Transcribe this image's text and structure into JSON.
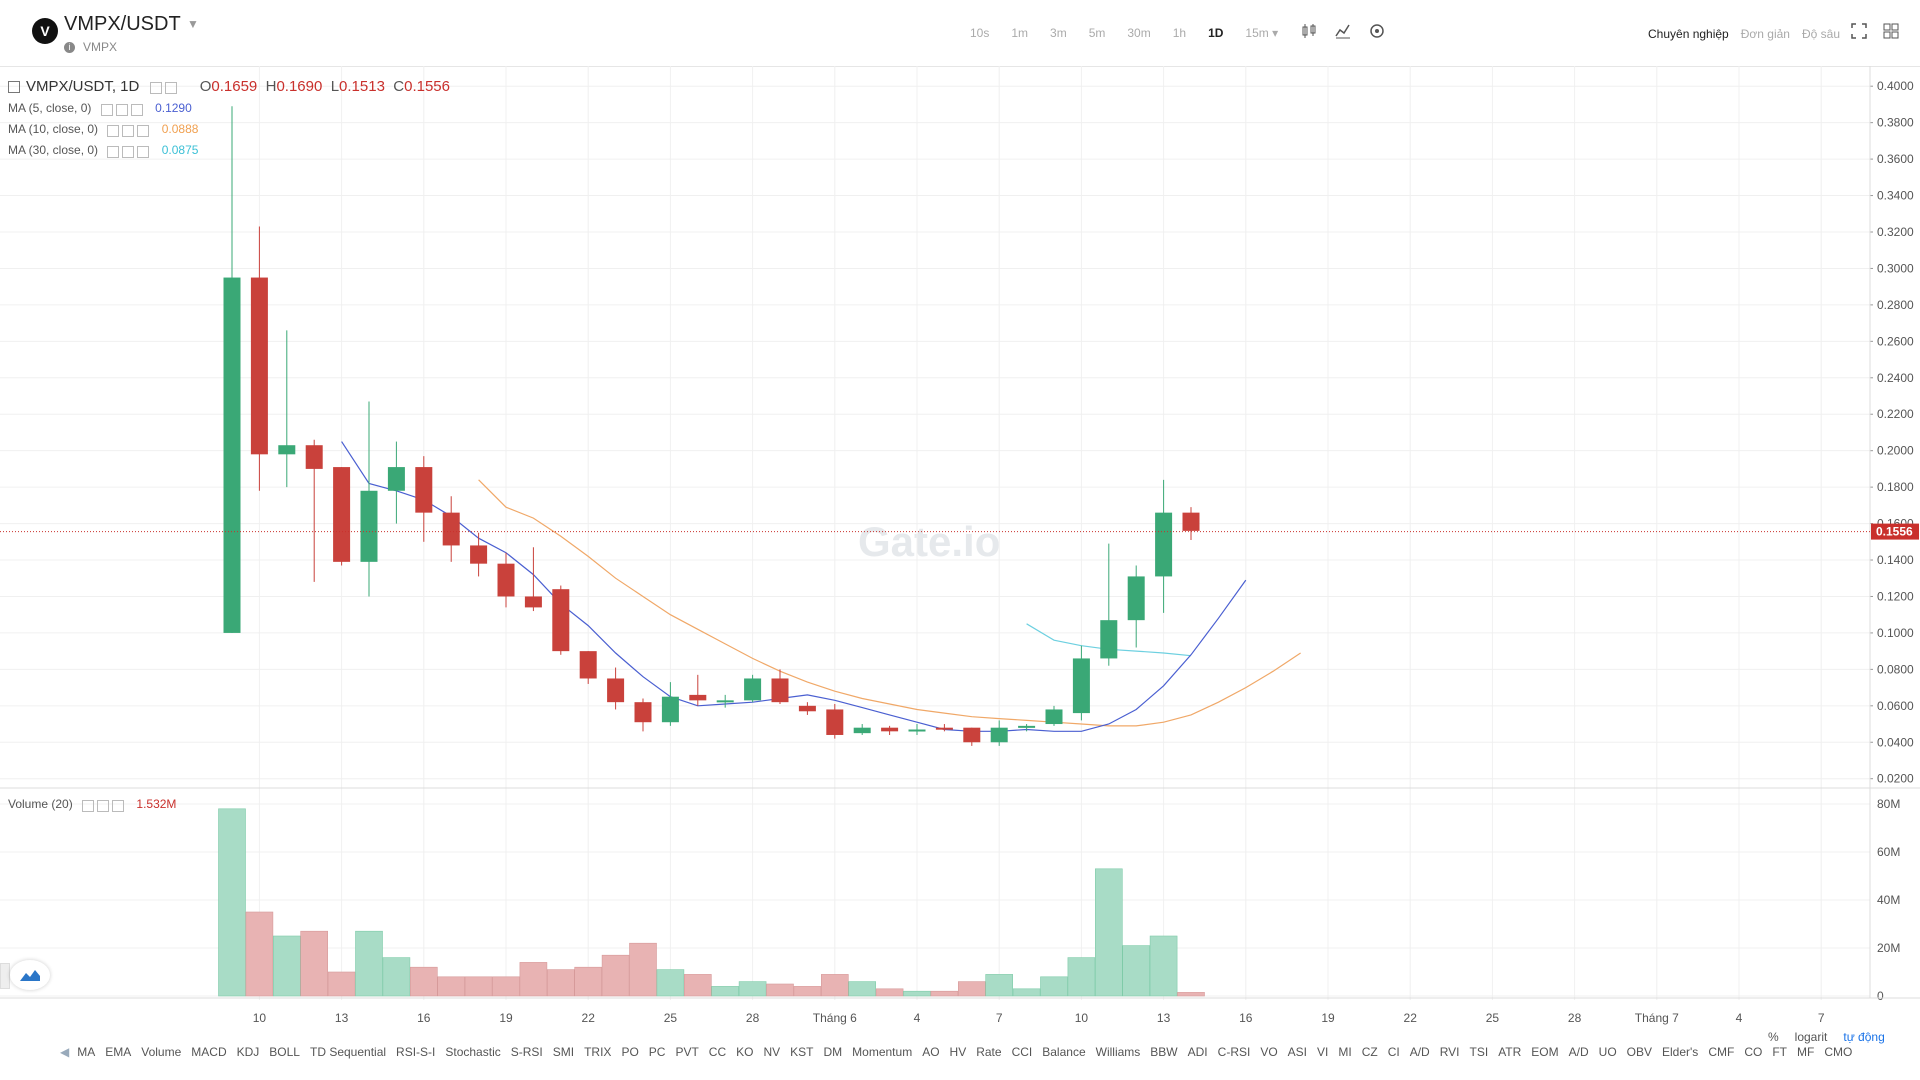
{
  "header": {
    "pair": "VMPX/USDT",
    "sub": "VMPX",
    "intervals": [
      "10s",
      "1m",
      "3m",
      "5m",
      "30m",
      "1h",
      "1D",
      "15m ▾"
    ],
    "active_interval": "1D",
    "modes": [
      "Chuyên nghiệp",
      "Đơn giản",
      "Độ sâu"
    ],
    "active_mode": "Chuyên nghiệp"
  },
  "legend": {
    "title": "VMPX/USDT, 1D",
    "o_label": "O",
    "o": "0.1659",
    "h_label": "H",
    "h": "0.1690",
    "l_label": "L",
    "l": "0.1513",
    "c_label": "C",
    "c": "0.1556",
    "ma5_label": "MA (5, close, 0)",
    "ma5_value": "0.1290",
    "ma10_label": "MA (10, close, 0)",
    "ma10_value": "0.0888",
    "ma30_label": "MA (30, close, 0)",
    "ma30_value": "0.0875",
    "volume_label": "Volume (20)",
    "volume_value": "1.532M"
  },
  "colors": {
    "up": "#3aa876",
    "down": "#c9413b",
    "up_vol": "#a8dcc6",
    "down_vol": "#e8b3b3",
    "ma5": "#4a5fd1",
    "ma10": "#f0a868",
    "ma30": "#6dd0e0",
    "last_price": "#c9302c"
  },
  "watermark": "Gate.io",
  "chart_data": {
    "type": "candlestick",
    "title": "VMPX/USDT, 1D",
    "price_axis_ticks": [
      "0.0200",
      "0.0400",
      "0.0600",
      "0.0800",
      "0.1000",
      "0.1200",
      "0.1400",
      "0.1600",
      "0.1800",
      "0.2000",
      "0.2200",
      "0.2400",
      "0.2600",
      "0.2800",
      "0.3000",
      "0.3200",
      "0.3400",
      "0.3600",
      "0.3800",
      "0.4000"
    ],
    "ylim": [
      0.016,
      0.4045
    ],
    "last_price": "0.1556",
    "volume_axis_ticks": [
      "0",
      "20M",
      "40M",
      "60M",
      "80M"
    ],
    "volume_ylim": [
      0,
      80
    ],
    "x_ticks": [
      "10",
      "13",
      "16",
      "19",
      "22",
      "25",
      "28",
      "Tháng 6",
      "4",
      "7",
      "10",
      "13",
      "16",
      "19",
      "22",
      "25",
      "28",
      "Tháng 7",
      "4",
      "7"
    ],
    "x_tick_index": [
      1,
      4,
      7,
      10,
      13,
      16,
      19,
      22,
      25,
      28,
      31,
      34,
      37,
      40,
      43,
      46,
      49,
      52,
      55,
      58
    ],
    "candles": [
      {
        "o": 0.1,
        "h": 0.389,
        "l": 0.1,
        "c": 0.295,
        "v": 78
      },
      {
        "o": 0.295,
        "h": 0.323,
        "l": 0.178,
        "c": 0.198,
        "v": 35
      },
      {
        "o": 0.198,
        "h": 0.266,
        "l": 0.18,
        "c": 0.203,
        "v": 25
      },
      {
        "o": 0.203,
        "h": 0.206,
        "l": 0.128,
        "c": 0.19,
        "v": 27
      },
      {
        "o": 0.191,
        "h": 0.191,
        "l": 0.137,
        "c": 0.139,
        "v": 10
      },
      {
        "o": 0.139,
        "h": 0.227,
        "l": 0.12,
        "c": 0.178,
        "v": 27
      },
      {
        "o": 0.178,
        "h": 0.205,
        "l": 0.16,
        "c": 0.191,
        "v": 16
      },
      {
        "o": 0.191,
        "h": 0.197,
        "l": 0.15,
        "c": 0.166,
        "v": 12
      },
      {
        "o": 0.166,
        "h": 0.175,
        "l": 0.139,
        "c": 0.148,
        "v": 8
      },
      {
        "o": 0.148,
        "h": 0.155,
        "l": 0.131,
        "c": 0.138,
        "v": 8
      },
      {
        "o": 0.138,
        "h": 0.144,
        "l": 0.114,
        "c": 0.12,
        "v": 8
      },
      {
        "o": 0.12,
        "h": 0.147,
        "l": 0.112,
        "c": 0.114,
        "v": 14
      },
      {
        "o": 0.124,
        "h": 0.126,
        "l": 0.088,
        "c": 0.09,
        "v": 11
      },
      {
        "o": 0.09,
        "h": 0.09,
        "l": 0.072,
        "c": 0.075,
        "v": 12
      },
      {
        "o": 0.075,
        "h": 0.081,
        "l": 0.058,
        "c": 0.062,
        "v": 17
      },
      {
        "o": 0.062,
        "h": 0.064,
        "l": 0.046,
        "c": 0.051,
        "v": 22
      },
      {
        "o": 0.051,
        "h": 0.073,
        "l": 0.049,
        "c": 0.065,
        "v": 11
      },
      {
        "o": 0.066,
        "h": 0.077,
        "l": 0.06,
        "c": 0.063,
        "v": 9
      },
      {
        "o": 0.062,
        "h": 0.066,
        "l": 0.059,
        "c": 0.063,
        "v": 4
      },
      {
        "o": 0.063,
        "h": 0.077,
        "l": 0.062,
        "c": 0.075,
        "v": 6
      },
      {
        "o": 0.075,
        "h": 0.08,
        "l": 0.061,
        "c": 0.062,
        "v": 5
      },
      {
        "o": 0.06,
        "h": 0.062,
        "l": 0.055,
        "c": 0.057,
        "v": 4
      },
      {
        "o": 0.058,
        "h": 0.061,
        "l": 0.042,
        "c": 0.044,
        "v": 9
      },
      {
        "o": 0.045,
        "h": 0.05,
        "l": 0.044,
        "c": 0.048,
        "v": 6
      },
      {
        "o": 0.048,
        "h": 0.049,
        "l": 0.044,
        "c": 0.046,
        "v": 3
      },
      {
        "o": 0.046,
        "h": 0.05,
        "l": 0.044,
        "c": 0.047,
        "v": 2
      },
      {
        "o": 0.048,
        "h": 0.05,
        "l": 0.046,
        "c": 0.047,
        "v": 2
      },
      {
        "o": 0.048,
        "h": 0.048,
        "l": 0.038,
        "c": 0.04,
        "v": 6
      },
      {
        "o": 0.04,
        "h": 0.052,
        "l": 0.038,
        "c": 0.048,
        "v": 9
      },
      {
        "o": 0.048,
        "h": 0.05,
        "l": 0.046,
        "c": 0.049,
        "v": 3
      },
      {
        "o": 0.05,
        "h": 0.06,
        "l": 0.049,
        "c": 0.058,
        "v": 8
      },
      {
        "o": 0.056,
        "h": 0.093,
        "l": 0.052,
        "c": 0.086,
        "v": 16
      },
      {
        "o": 0.086,
        "h": 0.149,
        "l": 0.082,
        "c": 0.107,
        "v": 53
      },
      {
        "o": 0.107,
        "h": 0.137,
        "l": 0.092,
        "c": 0.131,
        "v": 21
      },
      {
        "o": 0.131,
        "h": 0.184,
        "l": 0.111,
        "c": 0.166,
        "v": 25
      },
      {
        "o": 0.166,
        "h": 0.169,
        "l": 0.151,
        "c": 0.156,
        "v": 1.5
      }
    ],
    "ma5_start": 4,
    "ma5": [
      0.205,
      0.182,
      0.178,
      0.173,
      0.164,
      0.152,
      0.144,
      0.132,
      0.116,
      0.104,
      0.089,
      0.076,
      0.065,
      0.06,
      0.061,
      0.062,
      0.064,
      0.066,
      0.063,
      0.059,
      0.055,
      0.051,
      0.047,
      0.046,
      0.046,
      0.047,
      0.046,
      0.046,
      0.05,
      0.058,
      0.071,
      0.088,
      0.108,
      0.129
    ],
    "ma10_start": 9,
    "ma10": [
      0.184,
      0.169,
      0.163,
      0.153,
      0.142,
      0.13,
      0.12,
      0.11,
      0.102,
      0.094,
      0.086,
      0.079,
      0.073,
      0.068,
      0.064,
      0.061,
      0.058,
      0.056,
      0.054,
      0.053,
      0.052,
      0.051,
      0.05,
      0.049,
      0.049,
      0.051,
      0.055,
      0.062,
      0.07,
      0.079,
      0.089
    ],
    "ma30_start": 29,
    "ma30": [
      0.105,
      0.096,
      0.093,
      0.091,
      0.09,
      0.089,
      0.0875
    ]
  },
  "indicators": [
    "MA",
    "EMA",
    "Volume",
    "MACD",
    "KDJ",
    "BOLL",
    "TD Sequential",
    "RSI-S-I",
    "Stochastic",
    "S-RSI",
    "SMI",
    "TRIX",
    "PO",
    "PC",
    "PVT",
    "CC",
    "KO",
    "NV",
    "KST",
    "DM",
    "Momentum",
    "AO",
    "HV",
    "Rate",
    "CCI",
    "Balance",
    "Williams",
    "BBW",
    "ADI",
    "C-RSI",
    "VO",
    "ASI",
    "VI",
    "MI",
    "CZ",
    "CI",
    "A/D",
    "RVI",
    "TSI",
    "ATR",
    "EOM",
    "A/D",
    "UO",
    "OBV",
    "Elder's",
    "CMF",
    "CO",
    "FT",
    "MF",
    "CMO"
  ],
  "bottom_right": {
    "percent": "%",
    "log": "logarit",
    "auto": "tự động"
  }
}
